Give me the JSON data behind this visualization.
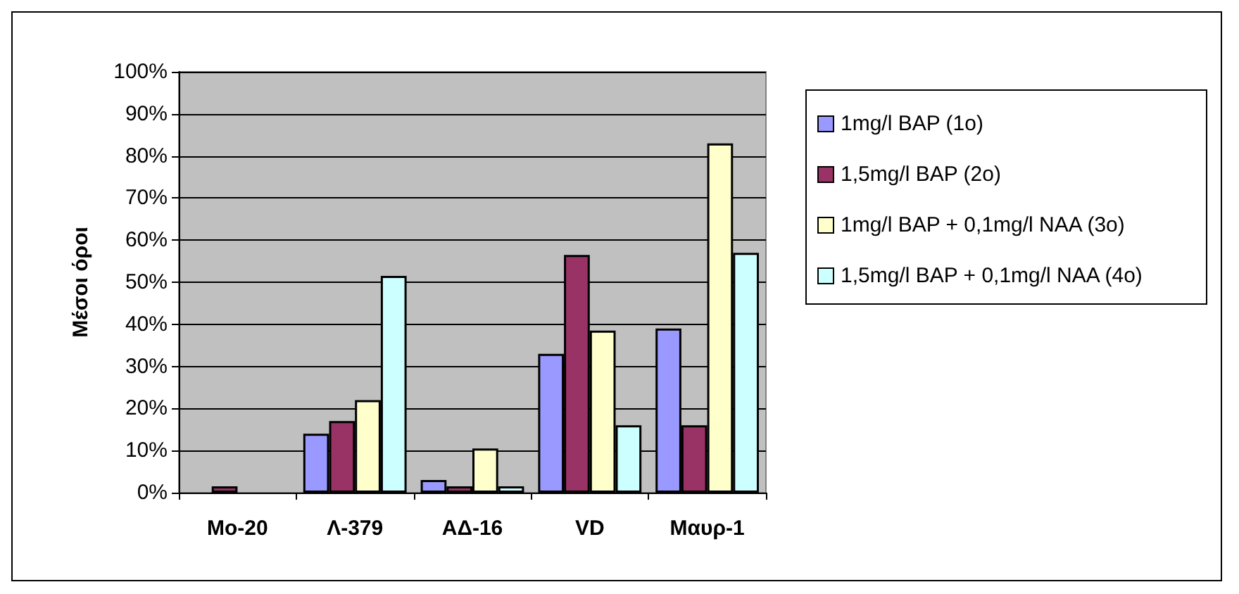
{
  "chart_data": {
    "type": "bar",
    "ylabel": "Μέσοι όροι",
    "categories": [
      "Mo-20",
      "Λ-379",
      "ΑΔ-16",
      "VD",
      "Μαυρ-1"
    ],
    "series": [
      {
        "name": "1mg/l BAP (1o)",
        "color": "#9999ff",
        "values": [
          null,
          14,
          3,
          33,
          39
        ]
      },
      {
        "name": "1,5mg/l BAP (2o)",
        "color": "#993366",
        "values": [
          1.5,
          17,
          1.5,
          56.5,
          16
        ]
      },
      {
        "name": "1mg/l BAP + 0,1mg/l NAA (3o)",
        "color": "#ffffcc",
        "values": [
          null,
          22,
          10.5,
          38.5,
          83
        ]
      },
      {
        "name": "1,5mg/l BAP + 0,1mg/l NAA (4o)",
        "color": "#ccffff",
        "values": [
          null,
          51.5,
          1.5,
          16,
          57
        ]
      }
    ],
    "ylim": [
      0,
      100
    ],
    "yticks": [
      {
        "value": 0,
        "label": "0%"
      },
      {
        "value": 10,
        "label": "10%"
      },
      {
        "value": 20,
        "label": "20%"
      },
      {
        "value": 30,
        "label": "30%"
      },
      {
        "value": 40,
        "label": "40%"
      },
      {
        "value": 50,
        "label": "50%"
      },
      {
        "value": 60,
        "label": "60%"
      },
      {
        "value": 70,
        "label": "70%"
      },
      {
        "value": 80,
        "label": "80%"
      },
      {
        "value": 90,
        "label": "90%"
      },
      {
        "value": 100,
        "label": "100%"
      }
    ],
    "grid": "y",
    "legend": "right"
  }
}
